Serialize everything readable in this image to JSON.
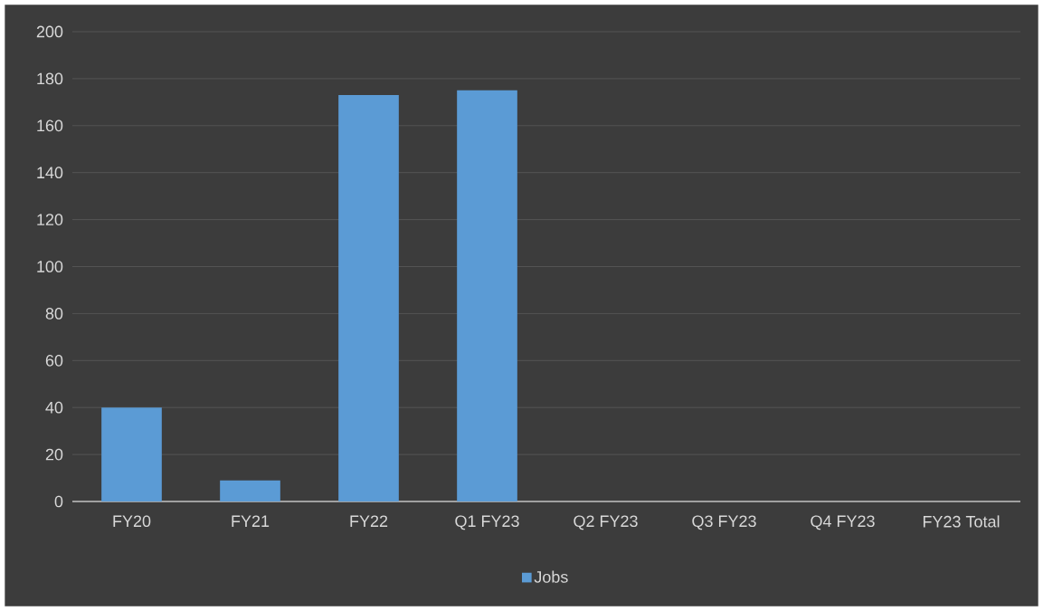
{
  "chart_data": {
    "type": "bar",
    "categories": [
      "FY20",
      "FY21",
      "FY22",
      "Q1 FY23",
      "Q2 FY23",
      "Q3 FY23",
      "Q4 FY23",
      "FY23 Total"
    ],
    "series": [
      {
        "name": "Jobs",
        "color": "#5b9bd5",
        "values": [
          40,
          9,
          173,
          175,
          0,
          0,
          0,
          0
        ]
      }
    ],
    "ylim": [
      0,
      200
    ],
    "yticks": [
      0,
      20,
      40,
      60,
      80,
      100,
      120,
      140,
      160,
      180,
      200
    ],
    "grid": "y",
    "legend": "bottom"
  }
}
